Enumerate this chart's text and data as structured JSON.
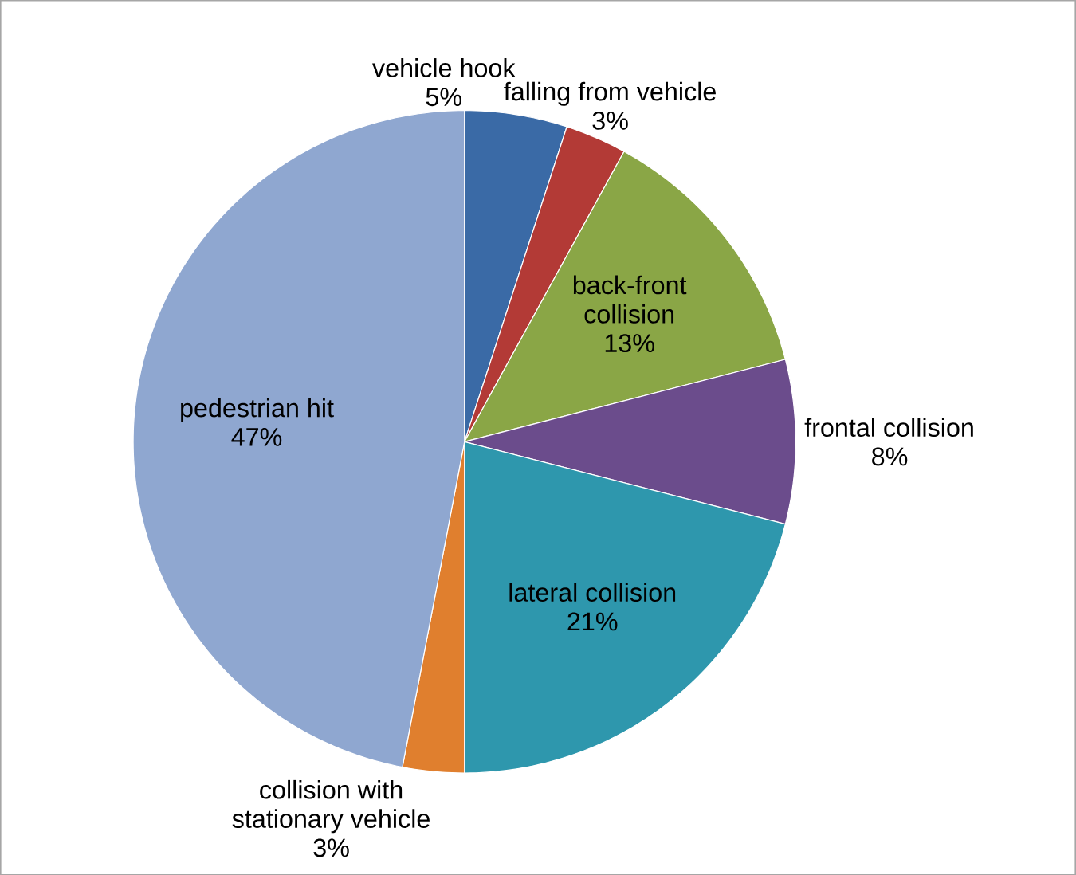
{
  "chart_data": {
    "type": "pie",
    "categories": [
      "vehicle hook",
      "falling from vehicle",
      "back-front collision",
      "frontal collision",
      "lateral collision",
      "collision with stationary vehicle",
      "pedestrian hit"
    ],
    "values": [
      5,
      3,
      13,
      8,
      21,
      3,
      47
    ],
    "value_labels": [
      "5%",
      "3%",
      "13%",
      "8%",
      "21%",
      "3%",
      "47%"
    ],
    "colors": [
      "#3a6aa6",
      "#b33a36",
      "#8aa646",
      "#6b4c8c",
      "#2e97ad",
      "#e07f2e",
      "#8fa7d0"
    ]
  }
}
